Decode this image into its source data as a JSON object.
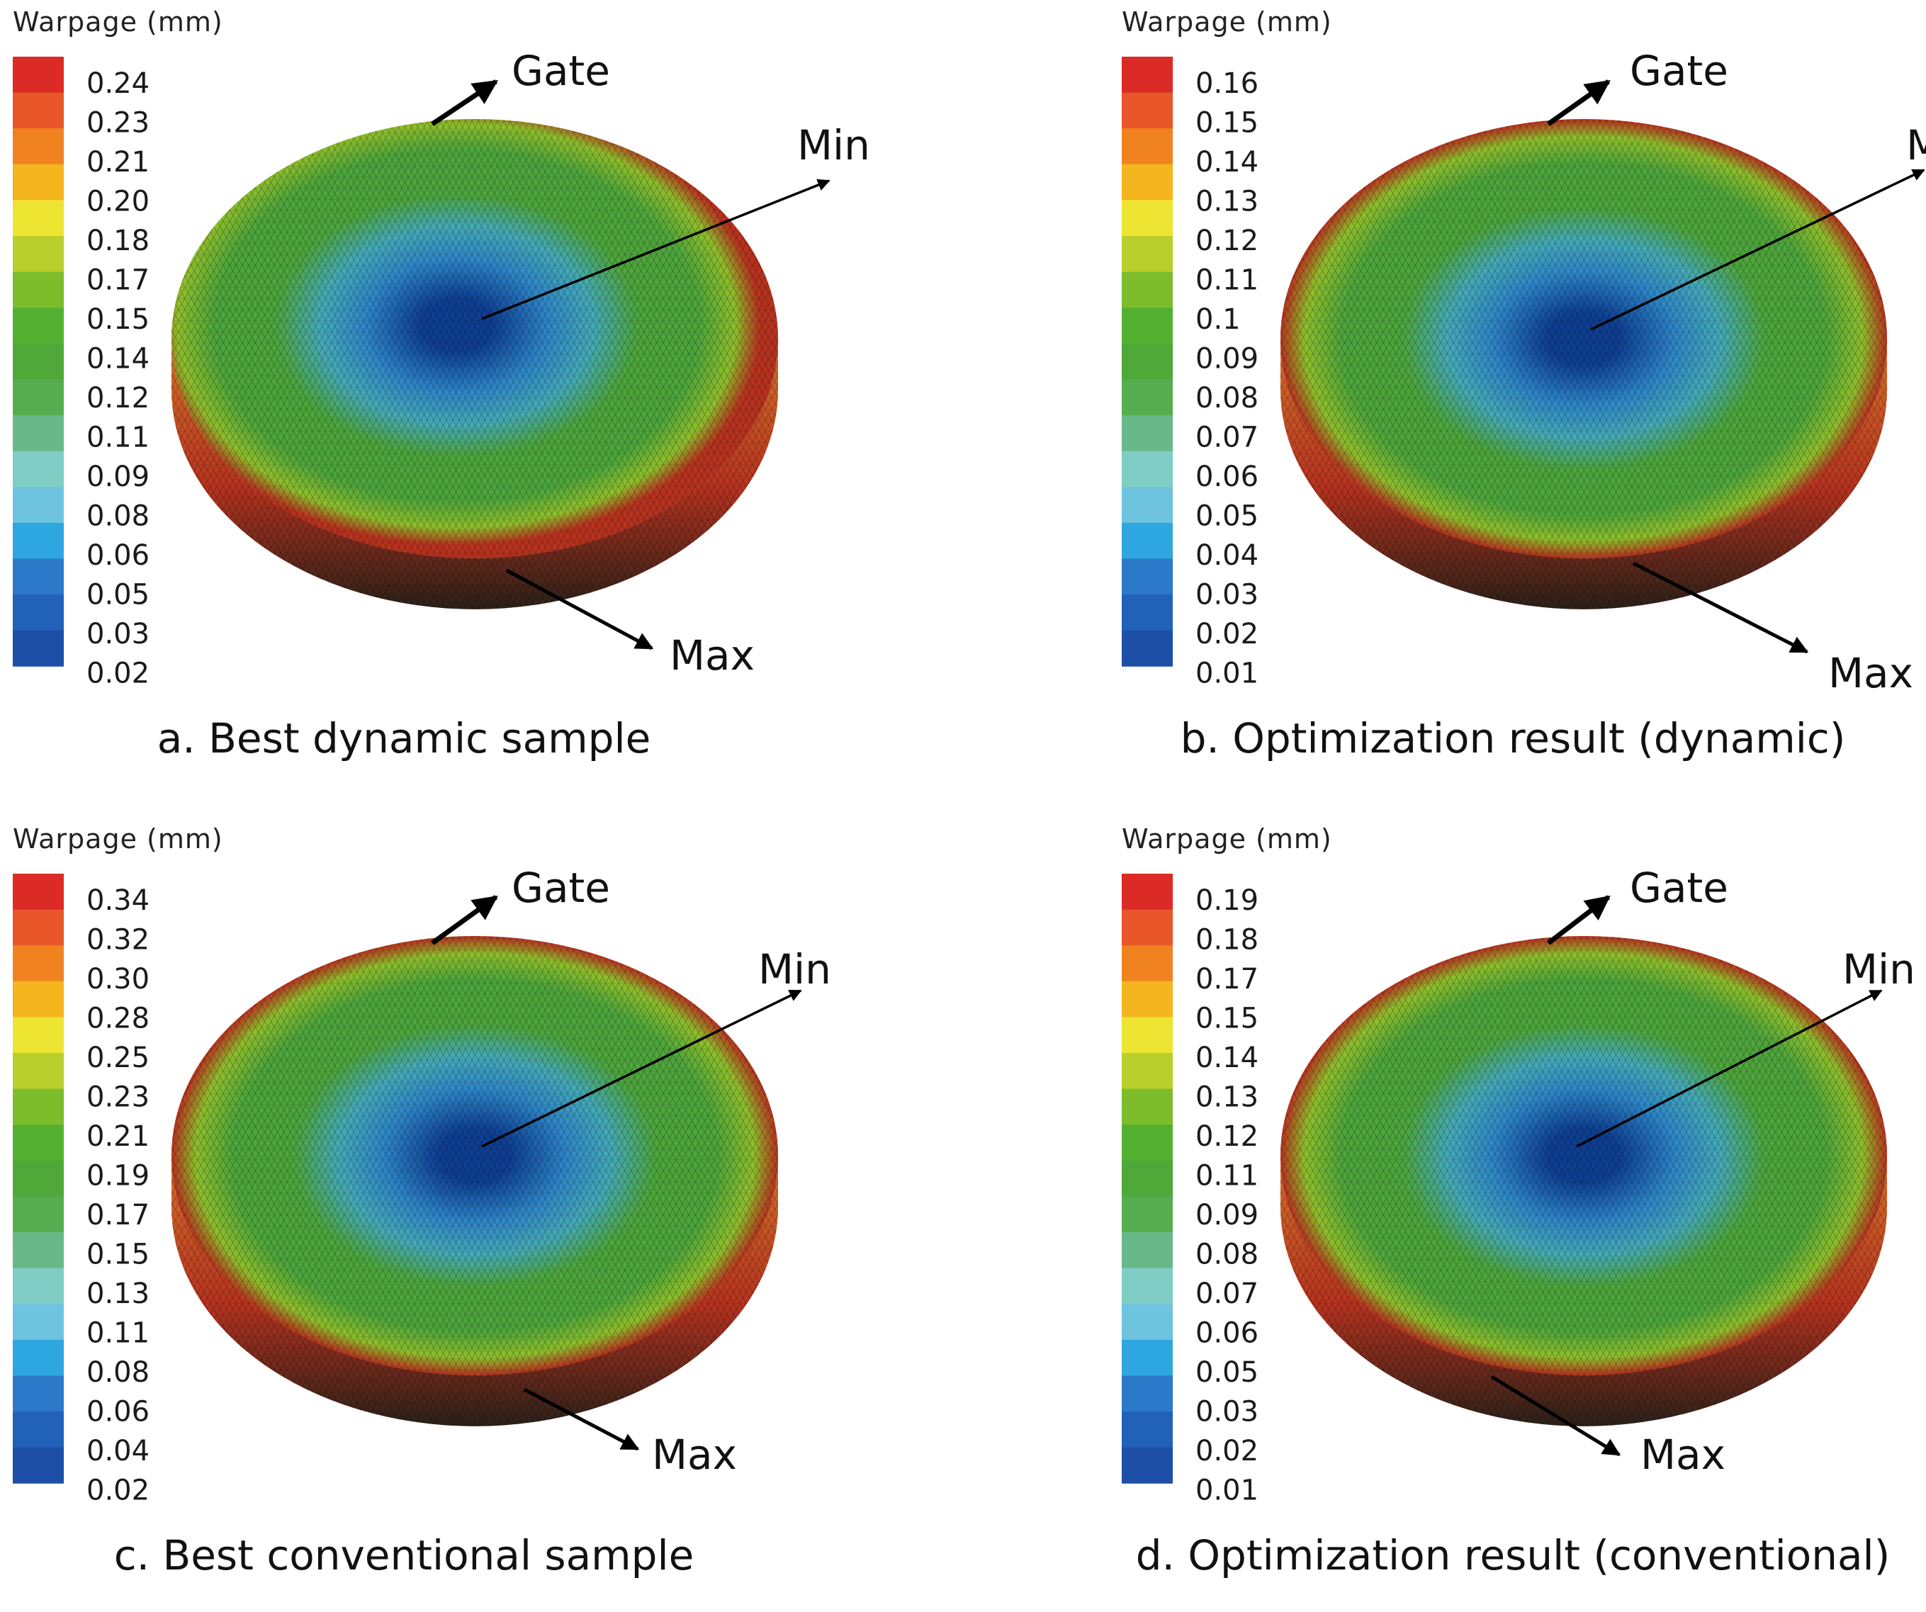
{
  "colorbar_colors": [
    "#1e4fa6",
    "#2261b8",
    "#2d79c9",
    "#2ea6e0",
    "#6ec4de",
    "#7fcdc4",
    "#69b88a",
    "#56ad4f",
    "#4fa838",
    "#54b031",
    "#7dbd2c",
    "#b9cf2c",
    "#ede532",
    "#f4b51f",
    "#f08320",
    "#e8562a",
    "#dc2a27"
  ],
  "disc_colors": {
    "min": "#0e3f93",
    "mid": "#2e86c8",
    "low": "#45aab8",
    "green": "#4ea63c",
    "ygreen": "#8fbf2c",
    "orange": "#d9762b",
    "red": "#b8331f",
    "side_dark": "#2a2119"
  },
  "panels": [
    {
      "id": "a",
      "colorbar_title": "Warpage (mm)",
      "ticks": [
        "0.24",
        "0.23",
        "0.21",
        "0.20",
        "0.18",
        "0.17",
        "0.15",
        "0.14",
        "0.12",
        "0.11",
        "0.09",
        "0.08",
        "0.06",
        "0.05",
        "0.03",
        "0.02"
      ],
      "labels": {
        "gate": "Gate",
        "min": "Min",
        "max": "Max"
      },
      "caption": "a. Best dynamic sample"
    },
    {
      "id": "b",
      "colorbar_title": "Warpage (mm)",
      "ticks": [
        "0.16",
        "0.15",
        "0.14",
        "0.13",
        "0.12",
        "0.11",
        "0.1",
        "0.09",
        "0.08",
        "0.07",
        "0.06",
        "0.05",
        "0.04",
        "0.03",
        "0.02",
        "0.01"
      ],
      "labels": {
        "gate": "Gate",
        "min": "Min",
        "max": "Max"
      },
      "caption": "b. Optimization result (dynamic)"
    },
    {
      "id": "c",
      "colorbar_title": "Warpage (mm)",
      "ticks": [
        "0.34",
        "0.32",
        "0.30",
        "0.28",
        "0.25",
        "0.23",
        "0.21",
        "0.19",
        "0.17",
        "0.15",
        "0.13",
        "0.11",
        "0.08",
        "0.06",
        "0.04",
        "0.02"
      ],
      "labels": {
        "gate": "Gate",
        "min": "Min",
        "max": "Max"
      },
      "caption": "c. Best conventional sample"
    },
    {
      "id": "d",
      "colorbar_title": "Warpage (mm)",
      "ticks": [
        "0.19",
        "0.18",
        "0.17",
        "0.15",
        "0.14",
        "0.13",
        "0.12",
        "0.11",
        "0.09",
        "0.08",
        "0.07",
        "0.06",
        "0.05",
        "0.03",
        "0.02",
        "0.01"
      ],
      "labels": {
        "gate": "Gate",
        "min": "Min",
        "max": "Max"
      },
      "caption": "d. Optimization result (conventional)"
    }
  ]
}
